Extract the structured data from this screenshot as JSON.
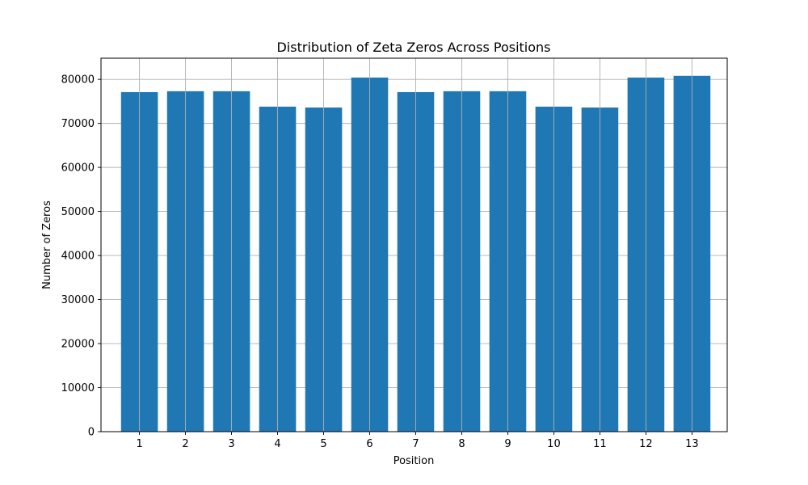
{
  "chart_data": {
    "type": "bar",
    "title": "Distribution of Zeta Zeros Across Positions",
    "xlabel": "Position",
    "ylabel": "Number of Zeros",
    "categories": [
      "1",
      "2",
      "3",
      "4",
      "5",
      "6",
      "7",
      "8",
      "9",
      "10",
      "11",
      "12",
      "13"
    ],
    "values": [
      77100,
      77300,
      77300,
      73800,
      73600,
      80400,
      77100,
      77300,
      77300,
      73800,
      73600,
      80400,
      80800
    ],
    "ylim": [
      0,
      84800
    ],
    "yticks": [
      0,
      10000,
      20000,
      30000,
      40000,
      50000,
      60000,
      70000,
      80000
    ],
    "ytick_labels": [
      "0",
      "10000",
      "20000",
      "30000",
      "40000",
      "50000",
      "60000",
      "70000",
      "80000"
    ],
    "grid": true,
    "bar_color": "#1f77b4"
  }
}
